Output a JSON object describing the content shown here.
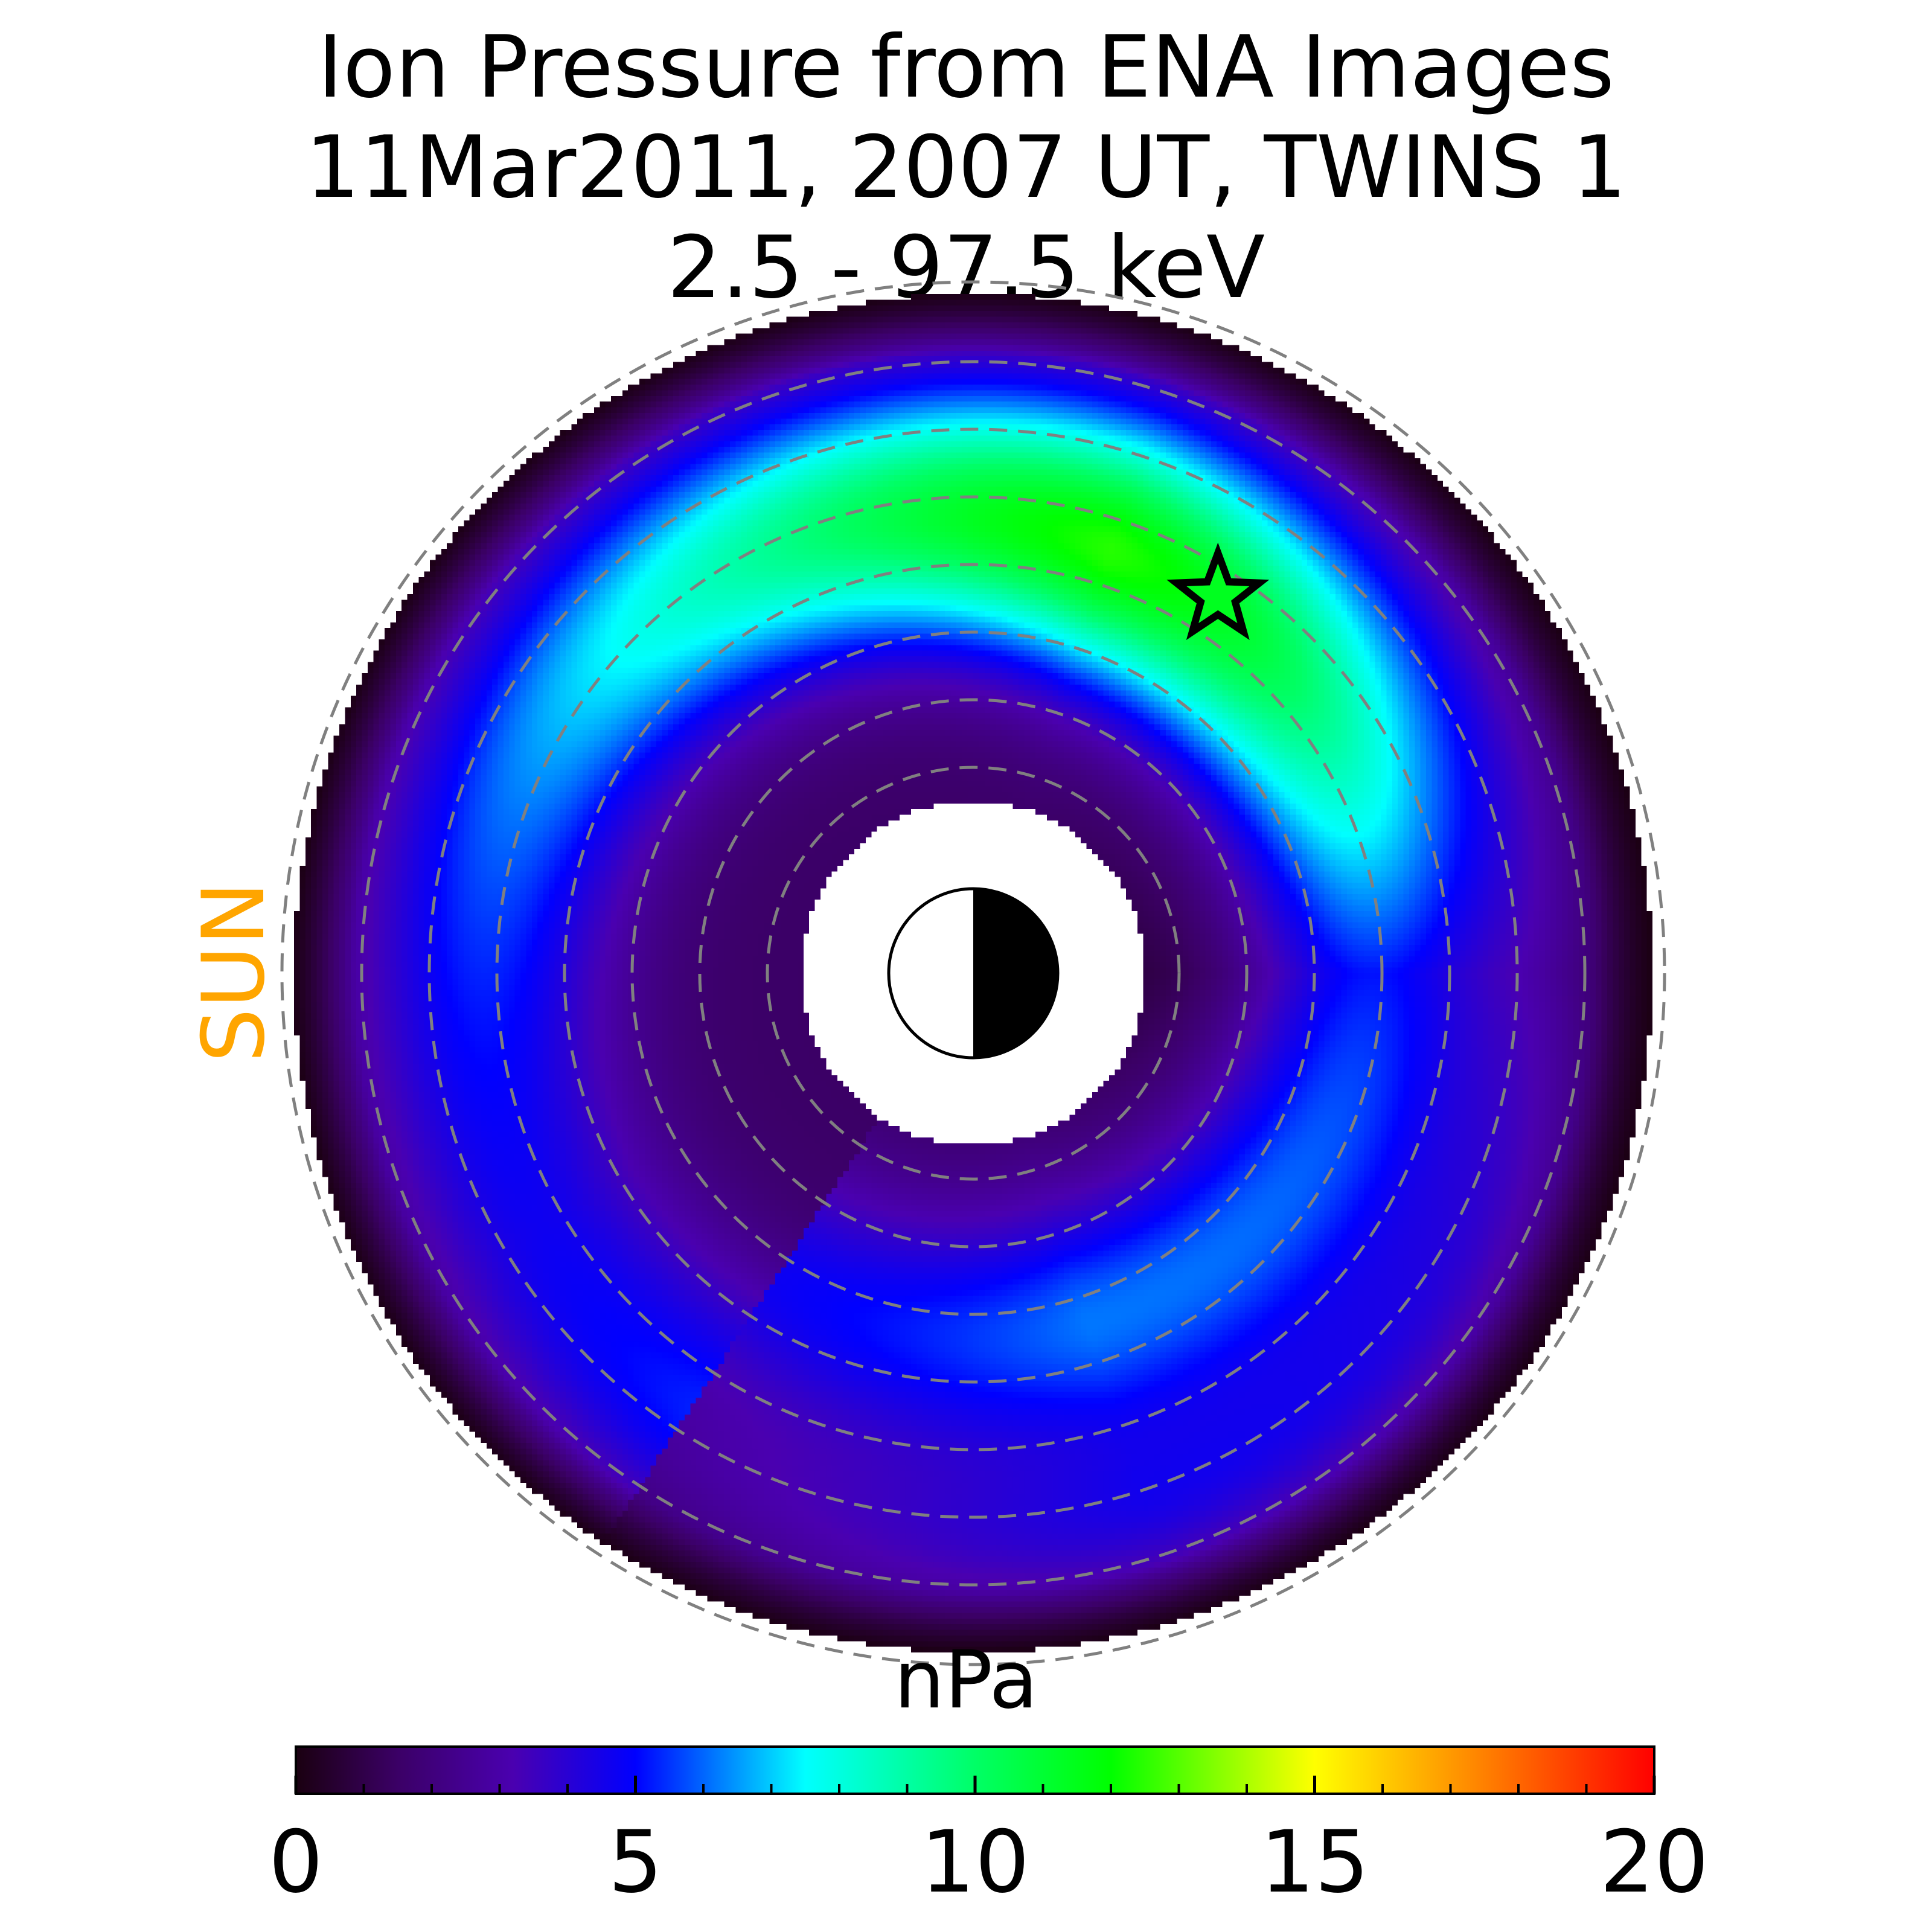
{
  "chart_data": {
    "type": "heatmap",
    "projection": "polar equatorial-plane map, noon (Sun) to the left",
    "title": [
      "Ion Pressure from  ENA Images",
      "11Mar2011, 2007 UT,  TWINS 1",
      "2.5 - 97.5 keV"
    ],
    "sun_label": "SUN",
    "colorbar": {
      "label": "nPa",
      "range": [
        0,
        20
      ],
      "ticks": [
        0,
        5,
        10,
        15,
        20
      ],
      "tick_labels": [
        "0",
        "5",
        "10",
        "15",
        "20"
      ],
      "minor_tick_step": 1
    },
    "colormap": [
      [
        0,
        "#1a0010"
      ],
      [
        1.5,
        "#3b0066"
      ],
      [
        3.2,
        "#4a00b0"
      ],
      [
        5,
        "#0000ff"
      ],
      [
        7.5,
        "#00ffff"
      ],
      [
        10,
        "#00ff66"
      ],
      [
        12,
        "#00ff00"
      ],
      [
        15,
        "#ffff00"
      ],
      [
        17.5,
        "#ff8000"
      ],
      [
        20,
        "#ff0000"
      ]
    ],
    "radial_range_RE": [
      2.5,
      10
    ],
    "grid_circles_RE": [
      3,
      4,
      5,
      6,
      7,
      8,
      9,
      10
    ],
    "pressure_features": {
      "inner_ring_min_nPa": 1.5,
      "outer_edge_nPa": 0.3,
      "peak_nPa": 11.5,
      "peak_local_time_h": 3.8,
      "peak_radius_RE": 6.3
    },
    "marker": {
      "shape": "star",
      "local_time_h": 3.8,
      "radius_RE": 6.6
    },
    "earth_symbol": "day-night half disk (day side toward Sun)",
    "colors": {
      "sun_label": "#ffa500",
      "grid": "#808080",
      "background": "#ffffff"
    }
  }
}
